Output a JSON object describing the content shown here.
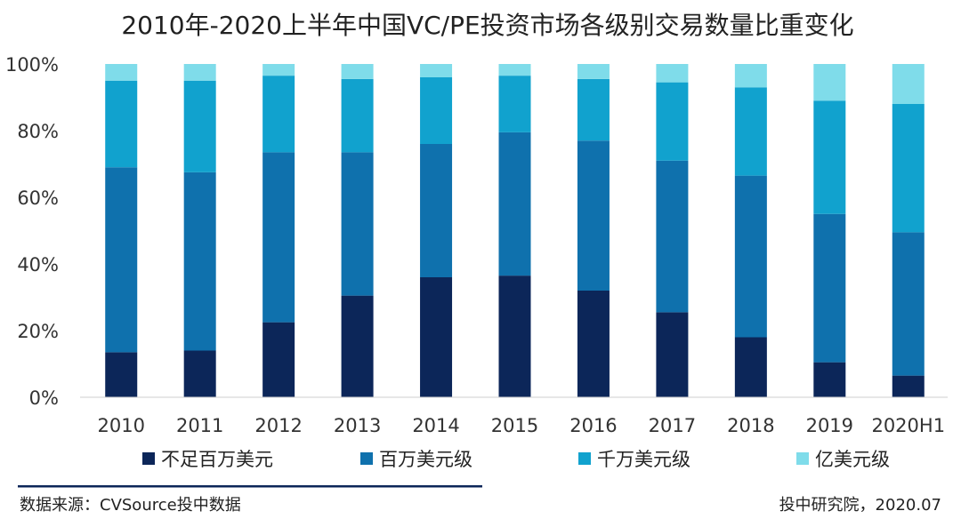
{
  "chart_data": {
    "type": "bar",
    "stacked": true,
    "title": "2010年-2020上半年中国VC/PE投资市场各级别交易数量比重变化",
    "categories": [
      "2010",
      "2011",
      "2012",
      "2013",
      "2014",
      "2015",
      "2016",
      "2017",
      "2018",
      "2019",
      "2020H1"
    ],
    "y_ticks": [
      "0%",
      "20%",
      "40%",
      "60%",
      "80%",
      "100%"
    ],
    "ylim": [
      0,
      100
    ],
    "series": [
      {
        "name": "不足百万美元",
        "color": "#0c2659",
        "values": [
          13.5,
          14,
          22.5,
          30.5,
          36,
          36.5,
          32,
          25.5,
          18,
          10.5,
          6.5
        ]
      },
      {
        "name": "百万美元级",
        "color": "#0f71ad",
        "values": [
          55.5,
          53.5,
          51,
          43,
          40,
          43,
          45,
          45.5,
          48.5,
          44.5,
          43
        ]
      },
      {
        "name": "千万美元级",
        "color": "#11a2ce",
        "values": [
          26,
          27.5,
          23,
          22,
          20,
          17,
          18.5,
          23.5,
          26.5,
          34,
          38.5
        ]
      },
      {
        "name": "亿美元级",
        "color": "#7fdcea",
        "values": [
          5,
          5,
          3.5,
          4.5,
          4,
          3.5,
          4.5,
          5.5,
          7,
          11,
          12
        ]
      }
    ],
    "legend_position": "bottom"
  },
  "footer": {
    "source": "数据来源：CVSource投中数据",
    "credit": "投中研究院，2020.07"
  }
}
